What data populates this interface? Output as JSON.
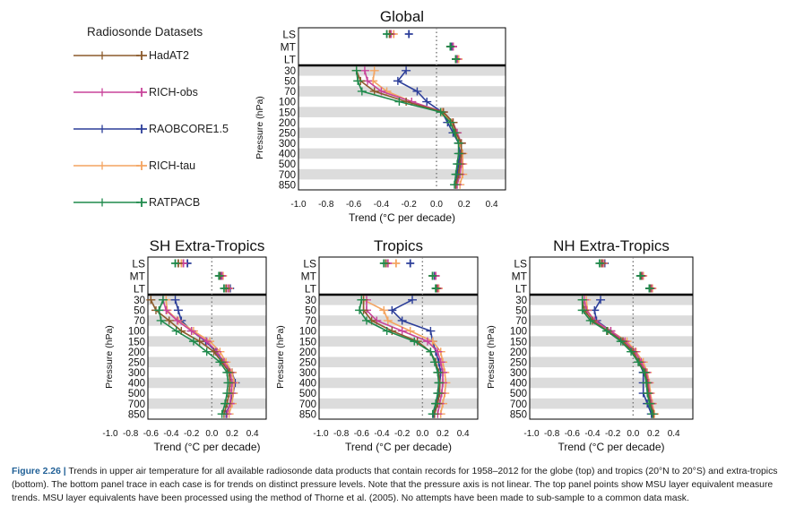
{
  "legend": {
    "title": "Radiosonde Datasets",
    "items": [
      {
        "name": "HadAT2",
        "color": "#8b5a2b"
      },
      {
        "name": "RICH-obs",
        "color": "#c8449a"
      },
      {
        "name": "RAOBCORE1.5",
        "color": "#2c3e99"
      },
      {
        "name": "RICH-tau",
        "color": "#f4a460"
      },
      {
        "name": "RATPACB",
        "color": "#1f8a4c"
      }
    ]
  },
  "caption": {
    "label": "Figure 2.26 |",
    "text": "Trends in upper air temperature for all available radiosonde data products that contain records for 1958–2012 for the globe (top) and tropics (20°N to 20°S) and extra-tropics (bottom). The bottom panel trace in each case is for trends on distinct pressure levels. Note that the pressure axis is not linear. The top panel points show MSU layer equivalent measure trends. MSU layer equivalents have been processed using the method of Thorne et al. (2005). No attempts have been made to sub-sample to a common data mask."
  },
  "chart_data": [
    {
      "type": "line",
      "title": "Global",
      "xlabel": "Trend (°C per decade)",
      "ylabel": "Pressure (hPa)",
      "xlim": [
        -1.0,
        0.5
      ],
      "x_ticks": [
        "-1.0",
        "-0.8",
        "-0.6",
        "-0.4",
        "-0.2",
        "0.0",
        "0.2",
        "0.4"
      ],
      "pressure_levels": [
        "30",
        "50",
        "70",
        "100",
        "150",
        "200",
        "250",
        "300",
        "400",
        "500",
        "700",
        "850"
      ],
      "msu_layers": [
        "LS",
        "MT",
        "LT"
      ],
      "series": [
        {
          "name": "HadAT2",
          "values": [
            -0.58,
            -0.55,
            -0.45,
            -0.22,
            0.05,
            0.12,
            0.14,
            0.18,
            0.18,
            0.17,
            0.16,
            0.14
          ],
          "msu": [
            -0.34,
            0.1,
            0.14
          ]
        },
        {
          "name": "RICH-obs",
          "values": [
            -0.52,
            -0.5,
            -0.4,
            -0.18,
            0.05,
            0.12,
            0.15,
            0.18,
            0.18,
            0.18,
            0.17,
            0.15
          ],
          "msu": [
            -0.33,
            0.12,
            0.15
          ]
        },
        {
          "name": "RAOBCORE1.5",
          "values": [
            -0.22,
            -0.28,
            -0.14,
            -0.07,
            0.04,
            0.08,
            0.12,
            0.16,
            0.17,
            0.16,
            0.15,
            0.14
          ],
          "msu": [
            -0.2,
            0.11,
            0.14
          ]
        },
        {
          "name": "RICH-tau",
          "values": [
            -0.45,
            -0.46,
            -0.36,
            -0.18,
            0.04,
            0.11,
            0.14,
            0.17,
            0.19,
            0.19,
            0.19,
            0.17
          ],
          "msu": [
            -0.31,
            0.12,
            0.16
          ]
        },
        {
          "name": "RATPACB",
          "values": [
            -0.58,
            -0.57,
            -0.54,
            -0.27,
            0.03,
            0.1,
            0.13,
            0.16,
            0.16,
            0.15,
            0.14,
            0.13
          ],
          "msu": [
            -0.36,
            0.1,
            0.14
          ]
        }
      ]
    },
    {
      "type": "line",
      "title": "SH Extra-Tropics",
      "xlabel": "Trend (°C per decade)",
      "ylabel": "Pressure (hPa)",
      "xlim": [
        -1.0,
        0.5
      ],
      "x_ticks": [
        "-1.0",
        "-0.8",
        "-0.6",
        "-0.4",
        "-0.2",
        "0.0",
        "0.2",
        "0.4"
      ],
      "pressure_levels": [
        "30",
        "50",
        "70",
        "100",
        "150",
        "200",
        "250",
        "300",
        "400",
        "500",
        "700",
        "850"
      ],
      "msu_layers": [
        "LS",
        "MT",
        "LT"
      ],
      "series": [
        {
          "name": "HadAT2",
          "values": [
            -0.6,
            -0.55,
            -0.42,
            -0.3,
            -0.12,
            0.02,
            0.1,
            0.17,
            0.18,
            0.17,
            0.15,
            0.12
          ],
          "msu": [
            -0.33,
            0.08,
            0.14
          ]
        },
        {
          "name": "RICH-obs",
          "values": [
            -0.48,
            -0.45,
            -0.34,
            -0.2,
            -0.05,
            0.05,
            0.12,
            0.18,
            0.2,
            0.19,
            0.18,
            0.15
          ],
          "msu": [
            -0.28,
            0.1,
            0.16
          ]
        },
        {
          "name": "RAOBCORE1.5",
          "values": [
            -0.36,
            -0.33,
            -0.3,
            -0.2,
            -0.06,
            0.04,
            0.12,
            0.2,
            0.23,
            0.21,
            0.18,
            0.14
          ],
          "msu": [
            -0.24,
            0.09,
            0.18
          ]
        },
        {
          "name": "RICH-tau",
          "values": [
            -0.45,
            -0.44,
            -0.33,
            -0.18,
            -0.02,
            0.08,
            0.14,
            0.2,
            0.22,
            0.21,
            0.2,
            0.17
          ],
          "msu": [
            -0.3,
            0.11,
            0.17
          ]
        },
        {
          "name": "RATPACB",
          "values": [
            -0.48,
            -0.52,
            -0.5,
            -0.35,
            -0.18,
            -0.05,
            0.08,
            0.15,
            0.16,
            0.15,
            0.13,
            0.1
          ],
          "msu": [
            -0.36,
            0.07,
            0.12
          ]
        }
      ]
    },
    {
      "type": "line",
      "title": "Tropics",
      "xlabel": "Trend (°C per decade)",
      "ylabel": "Pressure (hPa)",
      "xlim": [
        -1.0,
        0.5
      ],
      "x_ticks": [
        "-1.0",
        "-0.8",
        "-0.6",
        "-0.4",
        "-0.2",
        "0.0",
        "0.2",
        "0.4"
      ],
      "pressure_levels": [
        "30",
        "50",
        "70",
        "100",
        "150",
        "200",
        "250",
        "300",
        "400",
        "500",
        "700",
        "850"
      ],
      "msu_layers": [
        "LS",
        "MT",
        "LT"
      ],
      "series": [
        {
          "name": "HadAT2",
          "values": [
            -0.58,
            -0.58,
            -0.5,
            -0.3,
            -0.05,
            0.08,
            0.13,
            0.16,
            0.17,
            0.17,
            0.15,
            0.12
          ],
          "msu": [
            -0.36,
            0.1,
            0.14
          ]
        },
        {
          "name": "RICH-obs",
          "values": [
            -0.55,
            -0.55,
            -0.45,
            -0.2,
            0.05,
            0.15,
            0.18,
            0.2,
            0.2,
            0.19,
            0.17,
            0.15
          ],
          "msu": [
            -0.34,
            0.13,
            0.15
          ]
        },
        {
          "name": "RAOBCORE1.5",
          "values": [
            -0.1,
            -0.3,
            -0.2,
            0.08,
            0.1,
            0.13,
            0.16,
            0.18,
            0.17,
            0.16,
            0.14,
            0.11
          ],
          "msu": [
            -0.12,
            0.12,
            0.14
          ]
        },
        {
          "name": "RICH-tau",
          "values": [
            -0.58,
            -0.38,
            -0.34,
            -0.12,
            0.1,
            0.18,
            0.2,
            0.22,
            0.23,
            0.22,
            0.2,
            0.18
          ],
          "msu": [
            -0.26,
            0.13,
            0.16
          ]
        },
        {
          "name": "RATPACB",
          "values": [
            -0.6,
            -0.62,
            -0.55,
            -0.35,
            -0.08,
            0.08,
            0.12,
            0.15,
            0.16,
            0.15,
            0.13,
            0.1
          ],
          "msu": [
            -0.38,
            0.1,
            0.13
          ]
        }
      ]
    },
    {
      "type": "line",
      "title": "NH Extra-Tropics",
      "xlabel": "Trend (°C per decade)",
      "ylabel": "Pressure (hPa)",
      "xlim": [
        -1.0,
        0.5
      ],
      "x_ticks": [
        "-1.0",
        "-0.8",
        "-0.6",
        "-0.4",
        "-0.2",
        "0.0",
        "0.2",
        "0.4"
      ],
      "pressure_levels": [
        "30",
        "50",
        "70",
        "100",
        "150",
        "200",
        "250",
        "300",
        "400",
        "500",
        "700",
        "850"
      ],
      "msu_layers": [
        "LS",
        "MT",
        "LT"
      ],
      "series": [
        {
          "name": "HadAT2",
          "values": [
            -0.5,
            -0.48,
            -0.4,
            -0.25,
            -0.1,
            0.0,
            0.06,
            0.12,
            0.14,
            0.15,
            0.17,
            0.2
          ],
          "msu": [
            -0.31,
            0.08,
            0.17
          ]
        },
        {
          "name": "RICH-obs",
          "values": [
            -0.48,
            -0.46,
            -0.38,
            -0.22,
            -0.08,
            0.02,
            0.08,
            0.13,
            0.15,
            0.16,
            0.18,
            0.2
          ],
          "msu": [
            -0.3,
            0.09,
            0.18
          ]
        },
        {
          "name": "RAOBCORE1.5",
          "values": [
            -0.32,
            -0.38,
            -0.36,
            -0.22,
            -0.1,
            0.0,
            0.06,
            0.1,
            0.1,
            0.1,
            0.14,
            0.18
          ],
          "msu": [
            -0.28,
            0.08,
            0.16
          ]
        },
        {
          "name": "RICH-tau",
          "values": [
            -0.46,
            -0.45,
            -0.38,
            -0.22,
            -0.06,
            0.03,
            0.1,
            0.14,
            0.16,
            0.17,
            0.19,
            0.21
          ],
          "msu": [
            -0.29,
            0.1,
            0.19
          ]
        },
        {
          "name": "RATPACB",
          "values": [
            -0.5,
            -0.5,
            -0.42,
            -0.26,
            -0.12,
            -0.02,
            0.05,
            0.11,
            0.13,
            0.14,
            0.16,
            0.19
          ],
          "msu": [
            -0.33,
            0.07,
            0.16
          ]
        }
      ]
    }
  ]
}
